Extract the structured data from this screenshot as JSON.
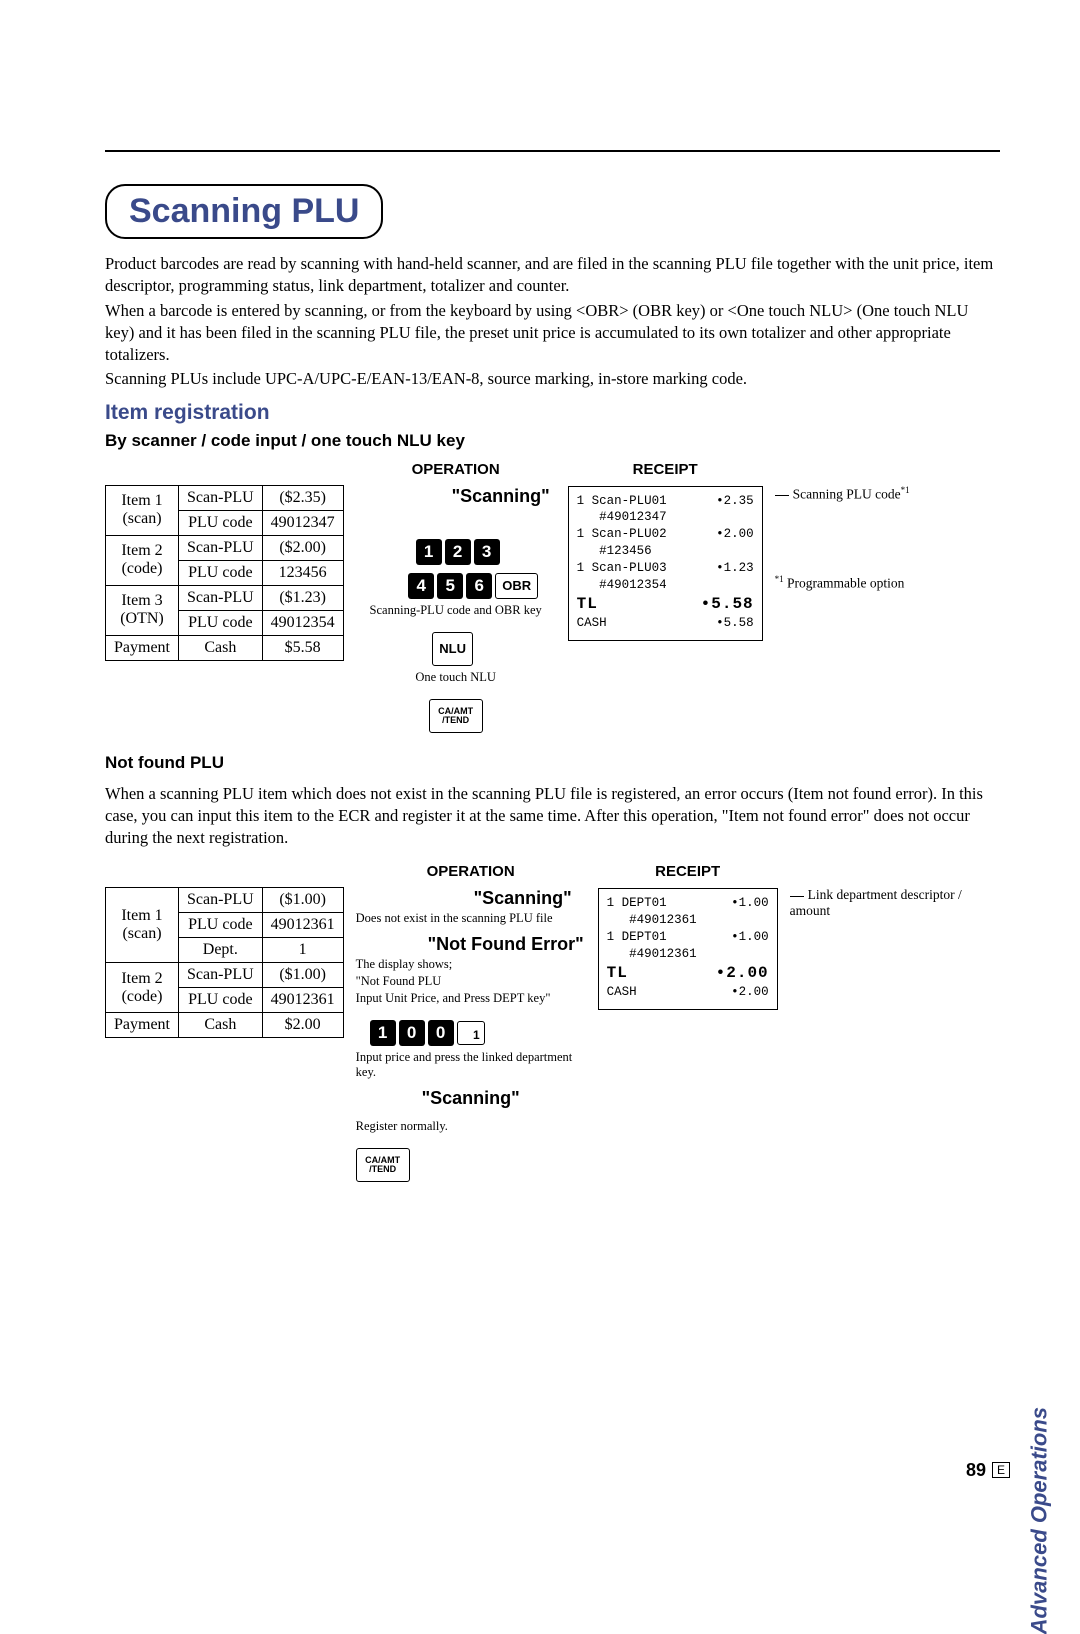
{
  "title": "Scanning PLU",
  "intro": [
    "Product barcodes are read by scanning with hand-held scanner, and are filed in the scanning PLU file together with the unit price, item descriptor, programming status, link department, totalizer and counter.",
    "When a barcode is entered by scanning, or from the keyboard by using <OBR> (OBR key) or <One touch NLU> (One touch NLU key) and it has been filed in the scanning PLU file, the preset unit price is accumulated to its own totalizer  and other appropriate totalizers.",
    "Scanning PLUs include UPC-A/UPC-E/EAN-13/EAN-8, source marking, in-store marking code."
  ],
  "sec1": {
    "heading": "Item registration",
    "sub": "By scanner / code input / one touch NLU key",
    "operation_head": "OPERATION",
    "receipt_head": "RECEIPT",
    "table": [
      [
        "Item 1",
        "Scan-PLU",
        "($2.35)"
      ],
      [
        "(scan)",
        "PLU code",
        "49012347"
      ],
      [
        "Item 2",
        "Scan-PLU",
        "($2.00)"
      ],
      [
        "(code)",
        "PLU code",
        "123456"
      ],
      [
        "Item 3",
        "Scan-PLU",
        "($1.23)"
      ],
      [
        "(OTN)",
        "PLU code",
        "49012354"
      ],
      [
        "Payment",
        "Cash",
        "$5.58"
      ]
    ],
    "op_scan": "\"Scanning\"",
    "keys1": [
      "1",
      "2",
      "3"
    ],
    "keys2": [
      "4",
      "5",
      "6"
    ],
    "obr": "OBR",
    "obr_caption": "Scanning-PLU code and OBR key",
    "nlu": "NLU",
    "nlu_caption": "One touch NLU",
    "caamt_top": "CA/AMT",
    "caamt_bot": "/TEND",
    "receipt": [
      {
        "l": "1 Scan-PLU01",
        "r": "•2.35"
      },
      {
        "l": "   #49012347",
        "r": ""
      },
      {
        "l": "1 Scan-PLU02",
        "r": "•2.00"
      },
      {
        "l": "   #123456",
        "r": ""
      },
      {
        "l": "1 Scan-PLU03",
        "r": "•1.23"
      },
      {
        "l": "   #49012354",
        "r": ""
      },
      {
        "l": "TL",
        "r": "•5.58",
        "big": true
      },
      {
        "l": "CASH",
        "r": "•5.58"
      }
    ],
    "annot1": "Scanning PLU code",
    "annot1_sup": "*1",
    "annot2_sup": "*1",
    "annot2": " Programmable option"
  },
  "sec2": {
    "heading": "Not found PLU",
    "para": "When a scanning PLU item which does not exist in the scanning PLU file is registered, an error occurs (Item not found error). In this case, you can input this item to the ECR and register it at the same time. After this operation, \"Item not found error\" does not occur during the next registration.",
    "operation_head": "OPERATION",
    "receipt_head": "RECEIPT",
    "table": [
      [
        "Item 1",
        "Scan-PLU",
        "($1.00)"
      ],
      [
        "(scan)",
        "PLU code",
        "49012361"
      ],
      [
        "",
        "Dept.",
        "1"
      ],
      [
        "Item 2",
        "Scan-PLU",
        "($1.00)"
      ],
      [
        "(code)",
        "PLU code",
        "49012361"
      ],
      [
        "Payment",
        "Cash",
        "$2.00"
      ]
    ],
    "op_scan": "\"Scanning\"",
    "op_scan_caption": "Does not exist in the scanning PLU file",
    "op_nf": "\"Not Found Error\"",
    "op_nf_caption1": "The display shows;",
    "op_nf_caption2": "\"Not Found PLU",
    "op_nf_caption3": "Input Unit Price, and Press DEPT key\"",
    "keys": [
      "1",
      "0",
      "0"
    ],
    "dept_key": "1",
    "keys_caption": "Input price and press the linked department key.",
    "op_scan2": "\"Scanning\"",
    "op_scan2_caption": "Register normally.",
    "caamt_top": "CA/AMT",
    "caamt_bot": "/TEND",
    "receipt": [
      {
        "l": "1 DEPT01",
        "r": "•1.00"
      },
      {
        "l": "   #49012361",
        "r": ""
      },
      {
        "l": "1 DEPT01",
        "r": "•1.00"
      },
      {
        "l": "   #49012361",
        "r": ""
      },
      {
        "l": "TL",
        "r": "•2.00",
        "big": true
      },
      {
        "l": "CASH",
        "r": "•2.00"
      }
    ],
    "annot": "Link department descriptor / amount"
  },
  "side_tab": "Advanced Operations",
  "page": "89",
  "page_e": "E"
}
